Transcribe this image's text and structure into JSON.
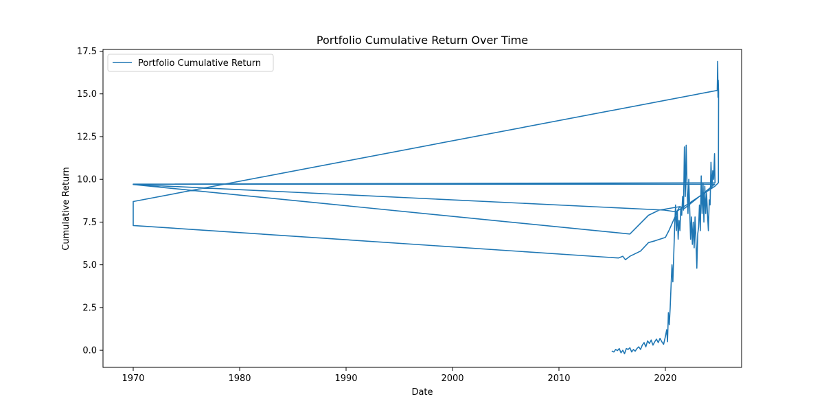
{
  "chart_data": {
    "type": "line",
    "title": "Portfolio Cumulative Return Over Time",
    "xlabel": "Date",
    "ylabel": "Cumulative Return",
    "x_scale": "date",
    "xlim": [
      "1967-03-01",
      "2027-03-01"
    ],
    "ylim": [
      -1.0,
      17.6
    ],
    "x_ticks": [
      {
        "date": "1970-01-01",
        "label": "1970"
      },
      {
        "date": "1980-01-01",
        "label": "1980"
      },
      {
        "date": "1990-01-01",
        "label": "1990"
      },
      {
        "date": "2000-01-01",
        "label": "2000"
      },
      {
        "date": "2010-01-01",
        "label": "2010"
      },
      {
        "date": "2020-01-01",
        "label": "2020"
      }
    ],
    "y_ticks": [
      {
        "value": 0.0,
        "label": "0.0"
      },
      {
        "value": 2.5,
        "label": "2.5"
      },
      {
        "value": 5.0,
        "label": "5.0"
      },
      {
        "value": 7.5,
        "label": "7.5"
      },
      {
        "value": 10.0,
        "label": "10.0"
      },
      {
        "value": 12.5,
        "label": "12.5"
      },
      {
        "value": 15.0,
        "label": "15.0"
      },
      {
        "value": 17.5,
        "label": "17.5"
      }
    ],
    "grid": false,
    "legend_position": "top-left",
    "series": [
      {
        "name": "Portfolio Cumulative Return",
        "color": "#1f77b4",
        "points": [
          [
            "2015-01-02",
            -0.05
          ],
          [
            "2015-03-01",
            -0.1
          ],
          [
            "2015-05-01",
            0.05
          ],
          [
            "2015-07-01",
            -0.02
          ],
          [
            "2015-09-01",
            0.1
          ],
          [
            "2015-11-01",
            -0.15
          ],
          [
            "2016-01-01",
            0.0
          ],
          [
            "2016-03-01",
            -0.2
          ],
          [
            "2016-05-01",
            0.1
          ],
          [
            "2016-07-01",
            0.05
          ],
          [
            "2016-09-01",
            0.15
          ],
          [
            "2016-11-01",
            -0.1
          ],
          [
            "2017-01-01",
            0.05
          ],
          [
            "2017-03-01",
            -0.05
          ],
          [
            "2017-05-01",
            0.1
          ],
          [
            "2017-07-01",
            0.2
          ],
          [
            "2017-09-01",
            0.05
          ],
          [
            "2017-11-01",
            0.3
          ],
          [
            "2018-01-01",
            0.45
          ],
          [
            "2018-03-01",
            0.2
          ],
          [
            "2018-05-01",
            0.55
          ],
          [
            "2018-07-01",
            0.4
          ],
          [
            "2018-09-01",
            0.6
          ],
          [
            "2018-11-01",
            0.3
          ],
          [
            "2019-01-01",
            0.5
          ],
          [
            "2019-03-01",
            0.65
          ],
          [
            "2019-05-01",
            0.45
          ],
          [
            "2019-07-01",
            0.7
          ],
          [
            "2019-09-01",
            0.5
          ],
          [
            "2019-11-01",
            0.35
          ],
          [
            "2020-01-01",
            0.8
          ],
          [
            "2020-02-15",
            1.2
          ],
          [
            "2020-03-15",
            0.5
          ],
          [
            "2020-04-15",
            2.2
          ],
          [
            "2020-05-15",
            1.5
          ],
          [
            "2020-06-15",
            2.5
          ],
          [
            "2020-07-15",
            3.8
          ],
          [
            "2020-08-15",
            5.0
          ],
          [
            "2020-09-15",
            4.0
          ],
          [
            "2020-10-15",
            5.6
          ],
          [
            "2020-11-15",
            7.2
          ],
          [
            "2020-12-15",
            8.5
          ],
          [
            "2021-01-15",
            7.0
          ],
          [
            "2021-02-15",
            8.2
          ],
          [
            "2021-03-15",
            6.5
          ],
          [
            "2021-04-15",
            7.6
          ],
          [
            "2021-05-15",
            7.0
          ],
          [
            "2021-06-15",
            8.4
          ],
          [
            "2021-07-15",
            7.9
          ],
          [
            "2021-08-15",
            9.0
          ],
          [
            "2021-09-15",
            8.2
          ],
          [
            "2021-10-15",
            11.9
          ],
          [
            "2021-11-15",
            9.0
          ],
          [
            "2021-12-15",
            12.0
          ],
          [
            "2022-01-15",
            9.5
          ],
          [
            "2022-02-15",
            8.0
          ],
          [
            "2022-03-15",
            10.0
          ],
          [
            "2022-04-15",
            8.3
          ],
          [
            "2022-05-15",
            6.5
          ],
          [
            "2022-06-15",
            7.8
          ],
          [
            "2022-07-15",
            6.2
          ],
          [
            "2022-08-15",
            7.5
          ],
          [
            "2022-09-15",
            6.0
          ],
          [
            "2022-10-15",
            7.8
          ],
          [
            "2022-11-15",
            6.5
          ],
          [
            "2022-12-15",
            4.8
          ],
          [
            "2023-01-15",
            6.8
          ],
          [
            "2023-02-15",
            7.2
          ],
          [
            "2023-03-15",
            8.5
          ],
          [
            "2023-04-15",
            7.0
          ],
          [
            "2023-05-15",
            10.2
          ],
          [
            "2023-06-15",
            8.0
          ],
          [
            "2023-07-15",
            9.8
          ],
          [
            "2023-08-15",
            7.5
          ],
          [
            "2023-09-15",
            9.6
          ],
          [
            "2023-10-15",
            8.0
          ],
          [
            "2023-11-15",
            9.2
          ],
          [
            "2023-12-15",
            8.0
          ],
          [
            "2024-01-15",
            7.0
          ],
          [
            "2024-02-15",
            8.8
          ],
          [
            "2024-03-15",
            8.5
          ],
          [
            "2024-04-15",
            11.0
          ],
          [
            "2024-05-15",
            9.5
          ],
          [
            "2024-06-15",
            10.5
          ],
          [
            "2024-07-15",
            10.0
          ],
          [
            "2024-08-15",
            11.5
          ],
          [
            "2024-09-01",
            9.8
          ],
          [
            "1970-01-01",
            9.72
          ],
          [
            "2024-08-20",
            9.72
          ],
          [
            "2021-10-20",
            8.3
          ],
          [
            "2021-05-01",
            8.4
          ],
          [
            "2020-05-01",
            7.0
          ],
          [
            "2020-01-01",
            6.6
          ],
          [
            "2019-01-01",
            6.4
          ],
          [
            "2018-06-01",
            6.3
          ],
          [
            "2017-09-01",
            5.8
          ],
          [
            "2017-01-01",
            5.6
          ],
          [
            "2016-09-01",
            5.5
          ],
          [
            "2016-04-01",
            5.3
          ],
          [
            "2016-01-01",
            5.5
          ],
          [
            "2015-08-01",
            5.4
          ],
          [
            "1970-01-01",
            7.3
          ],
          [
            "1970-01-01",
            8.7
          ],
          [
            "2024-11-15",
            15.2
          ],
          [
            "2024-12-01",
            16.9
          ],
          [
            "2024-12-10",
            14.8
          ],
          [
            "2024-12-20",
            15.8
          ],
          [
            "2025-01-01",
            15.1
          ],
          [
            "2024-12-25",
            9.8
          ],
          [
            "2024-09-01",
            9.6
          ],
          [
            "2021-01-01",
            8.1
          ],
          [
            "2019-12-01",
            8.2
          ],
          [
            "1970-01-01",
            9.7
          ],
          [
            "2016-09-01",
            6.8
          ],
          [
            "2018-06-01",
            7.9
          ],
          [
            "2019-06-01",
            8.2
          ],
          [
            "2021-05-01",
            8.4
          ]
        ]
      }
    ]
  }
}
